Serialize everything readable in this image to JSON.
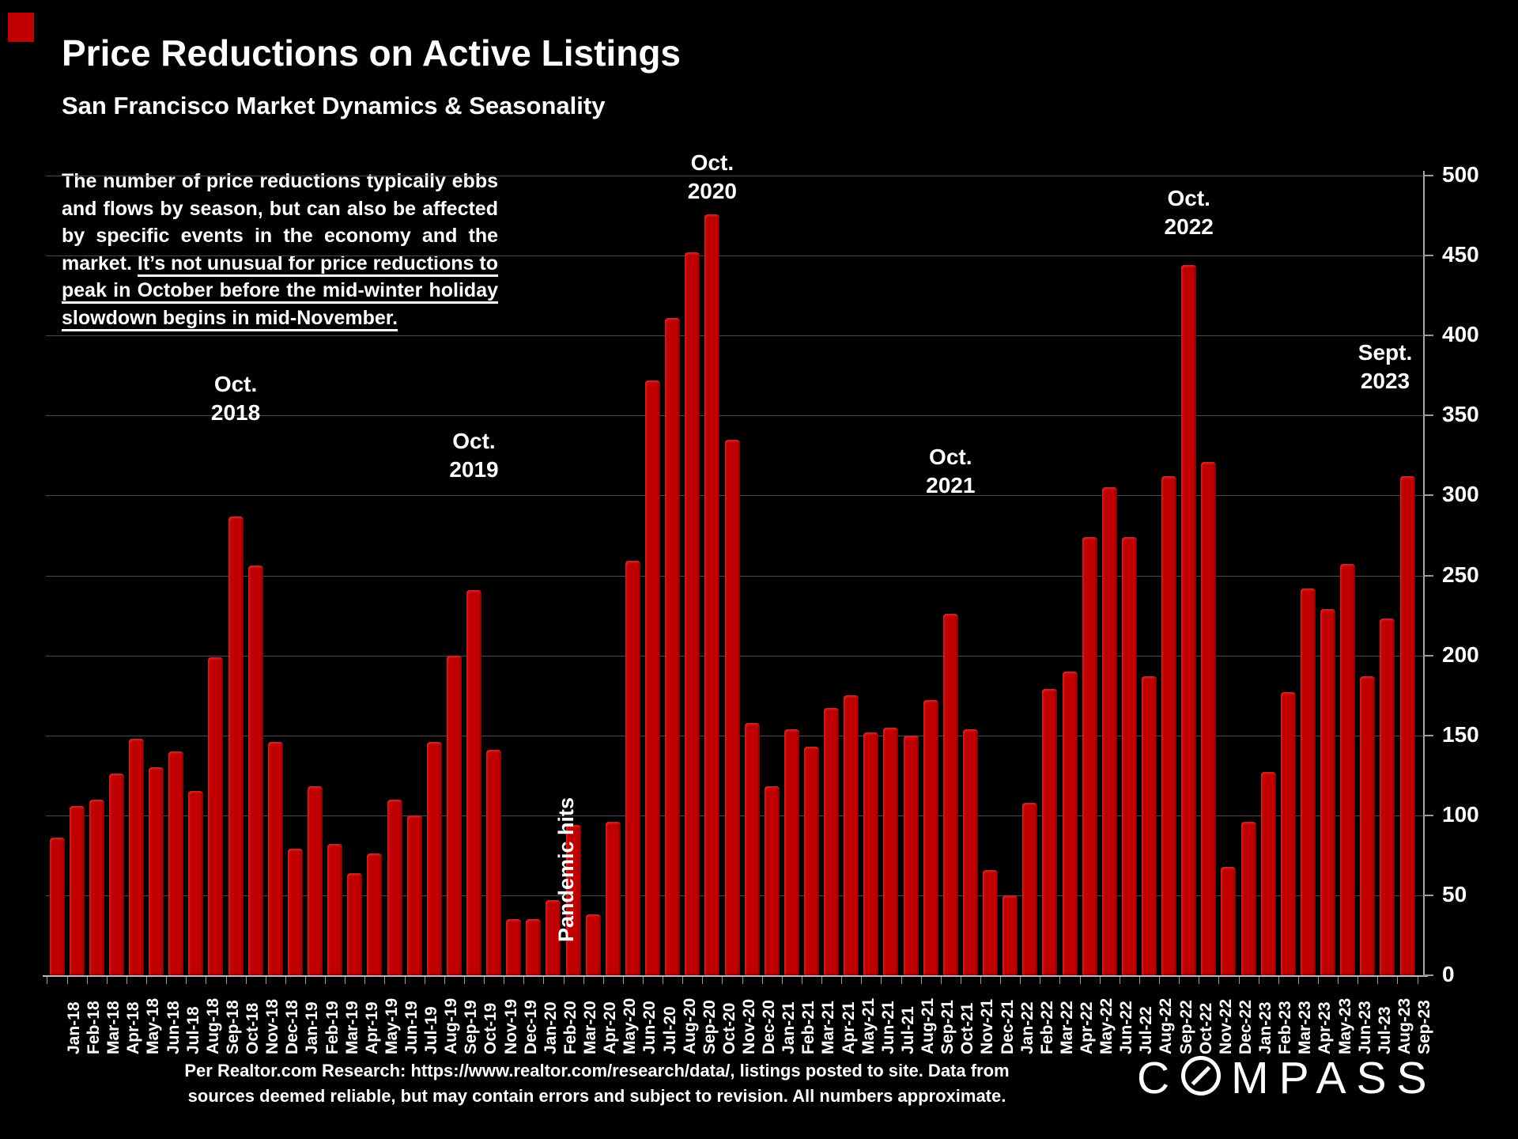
{
  "slide": {
    "title": "Price Reductions on Active Listings",
    "subtitle": "San Francisco Market Dynamics & Seasonality",
    "paragraph_intro": "The number of price reductions typically ebbs and flows by season, but can also be affected by specific events in the economy and the market. ",
    "paragraph_underlined": "It’s not unusual for price reductions to peak in October before the mid-winter holiday slowdown begins in mid-November.",
    "footer_line1": "Per Realtor.com Research:  https://www.realtor.com/research/data/, listings posted to site. Data from",
    "footer_line2": "sources deemed reliable, but may contain errors and subject to revision. All numbers approximate.",
    "logo_text": "COMPASS",
    "accent_color": "#C00000",
    "background_color": "#000000"
  },
  "chart_data": {
    "type": "bar",
    "title": "Price Reductions on Active Listings",
    "xlabel": "",
    "ylabel": "",
    "ylim": [
      0,
      500
    ],
    "ytick_step": 50,
    "ytick_labels": [
      "0",
      "50",
      "100",
      "150",
      "200",
      "250",
      "300",
      "350",
      "400",
      "450",
      "500"
    ],
    "grid": true,
    "bar_color": "#C00000",
    "axis_label_side": "right",
    "categories": [
      "Jan-18",
      "Feb-18",
      "Mar-18",
      "Apr-18",
      "May-18",
      "Jun-18",
      "Jul-18",
      "Aug-18",
      "Sep-18",
      "Oct-18",
      "Nov-18",
      "Dec-18",
      "Jan-19",
      "Feb-19",
      "Mar-19",
      "Apr-19",
      "May-19",
      "Jun-19",
      "Jul-19",
      "Aug-19",
      "Sep-19",
      "Oct-19",
      "Nov-19",
      "Dec-19",
      "Jan-20",
      "Feb-20",
      "Mar-20",
      "Apr-20",
      "May-20",
      "Jun-20",
      "Jul-20",
      "Aug-20",
      "Sep-20",
      "Oct-20",
      "Nov-20",
      "Dec-20",
      "Jan-21",
      "Feb-21",
      "Mar-21",
      "Apr-21",
      "May-21",
      "Jun-21",
      "Jul-21",
      "Aug-21",
      "Sep-21",
      "Oct-21",
      "Nov-21",
      "Dec-21",
      "Jan-22",
      "Feb-22",
      "Mar-22",
      "Apr-22",
      "May-22",
      "Jun-22",
      "Jul-22",
      "Aug-22",
      "Sep-22",
      "Oct-22",
      "Nov-22",
      "Dec-22",
      "Jan-23",
      "Feb-23",
      "Mar-23",
      "Apr-23",
      "May-23",
      "Jun-23",
      "Jul-23",
      "Aug-23",
      "Sep-23"
    ],
    "values": [
      86,
      106,
      110,
      126,
      148,
      130,
      140,
      115,
      199,
      287,
      256,
      146,
      79,
      118,
      82,
      64,
      76,
      110,
      100,
      146,
      200,
      241,
      141,
      35,
      35,
      47,
      94,
      38,
      96,
      259,
      372,
      411,
      452,
      476,
      335,
      158,
      118,
      154,
      143,
      167,
      175,
      152,
      155,
      150,
      172,
      226,
      154,
      66,
      50,
      108,
      179,
      190,
      274,
      305,
      274,
      187,
      312,
      444,
      321,
      68,
      96,
      127,
      177,
      242,
      229,
      257,
      187,
      223,
      312
    ],
    "annotations": [
      {
        "line1": "Oct.",
        "line2": "2018",
        "category": "Oct-18"
      },
      {
        "line1": "Oct.",
        "line2": "2019",
        "category": "Oct-19"
      },
      {
        "line1": "Oct.",
        "line2": "2020",
        "category": "Oct-20"
      },
      {
        "line1": "Oct.",
        "line2": "2021",
        "category": "Oct-21"
      },
      {
        "line1": "Oct.",
        "line2": "2022",
        "category": "Oct-22"
      },
      {
        "line1": "Sept.",
        "line2": "2023",
        "category": "Sep-23"
      }
    ],
    "event_annotation": {
      "label": "Pandemic hits",
      "category": "May-20"
    }
  }
}
